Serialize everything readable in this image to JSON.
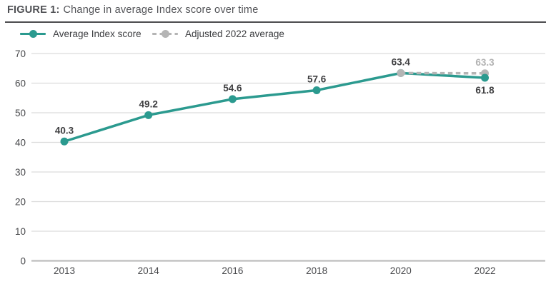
{
  "header": {
    "figure_label": "FIGURE 1:",
    "title": "Change in average Index score over time"
  },
  "chart_data": {
    "type": "line",
    "title": "Change in average Index score over time",
    "categories": [
      "2013",
      "2014",
      "2016",
      "2018",
      "2020",
      "2022"
    ],
    "series": [
      {
        "name": "Average Index score",
        "color": "#2b9a8f",
        "line_style": "solid",
        "label_color": "#3e3e40",
        "values": [
          40.3,
          49.2,
          54.6,
          57.6,
          63.4,
          61.8
        ],
        "points": [
          {
            "category": "2013",
            "value": 40.3,
            "label": "40.3",
            "label_pos": "above"
          },
          {
            "category": "2014",
            "value": 49.2,
            "label": "49.2",
            "label_pos": "above"
          },
          {
            "category": "2016",
            "value": 54.6,
            "label": "54.6",
            "label_pos": "above"
          },
          {
            "category": "2018",
            "value": 57.6,
            "label": "57.6",
            "label_pos": "above"
          },
          {
            "category": "2020",
            "value": 63.4,
            "label": "63.4",
            "label_pos": "above"
          },
          {
            "category": "2022",
            "value": 61.8,
            "label": "61.8",
            "label_pos": "below"
          }
        ]
      },
      {
        "name": "Adjusted 2022 average",
        "color": "#b5b5b5",
        "line_style": "dashed",
        "label_color": "#b2b2b2",
        "values": [
          null,
          null,
          null,
          null,
          63.4,
          63.3
        ],
        "points": [
          {
            "category": "2020",
            "value": 63.4,
            "label": "",
            "label_pos": "above"
          },
          {
            "category": "2022",
            "value": 63.3,
            "label": "63.3",
            "label_pos": "above"
          }
        ]
      }
    ],
    "ylim": [
      0,
      70
    ],
    "yticks": [
      0,
      10,
      20,
      30,
      40,
      50,
      60,
      70
    ],
    "grid": "horizontal-only",
    "legend_position": "top-left",
    "styles": {
      "grid_color": "#dcdcdc",
      "zero_line_color": "#bdbdbd",
      "tick_label_color": "#47484b",
      "divider_color": "#4c4c4e"
    }
  }
}
